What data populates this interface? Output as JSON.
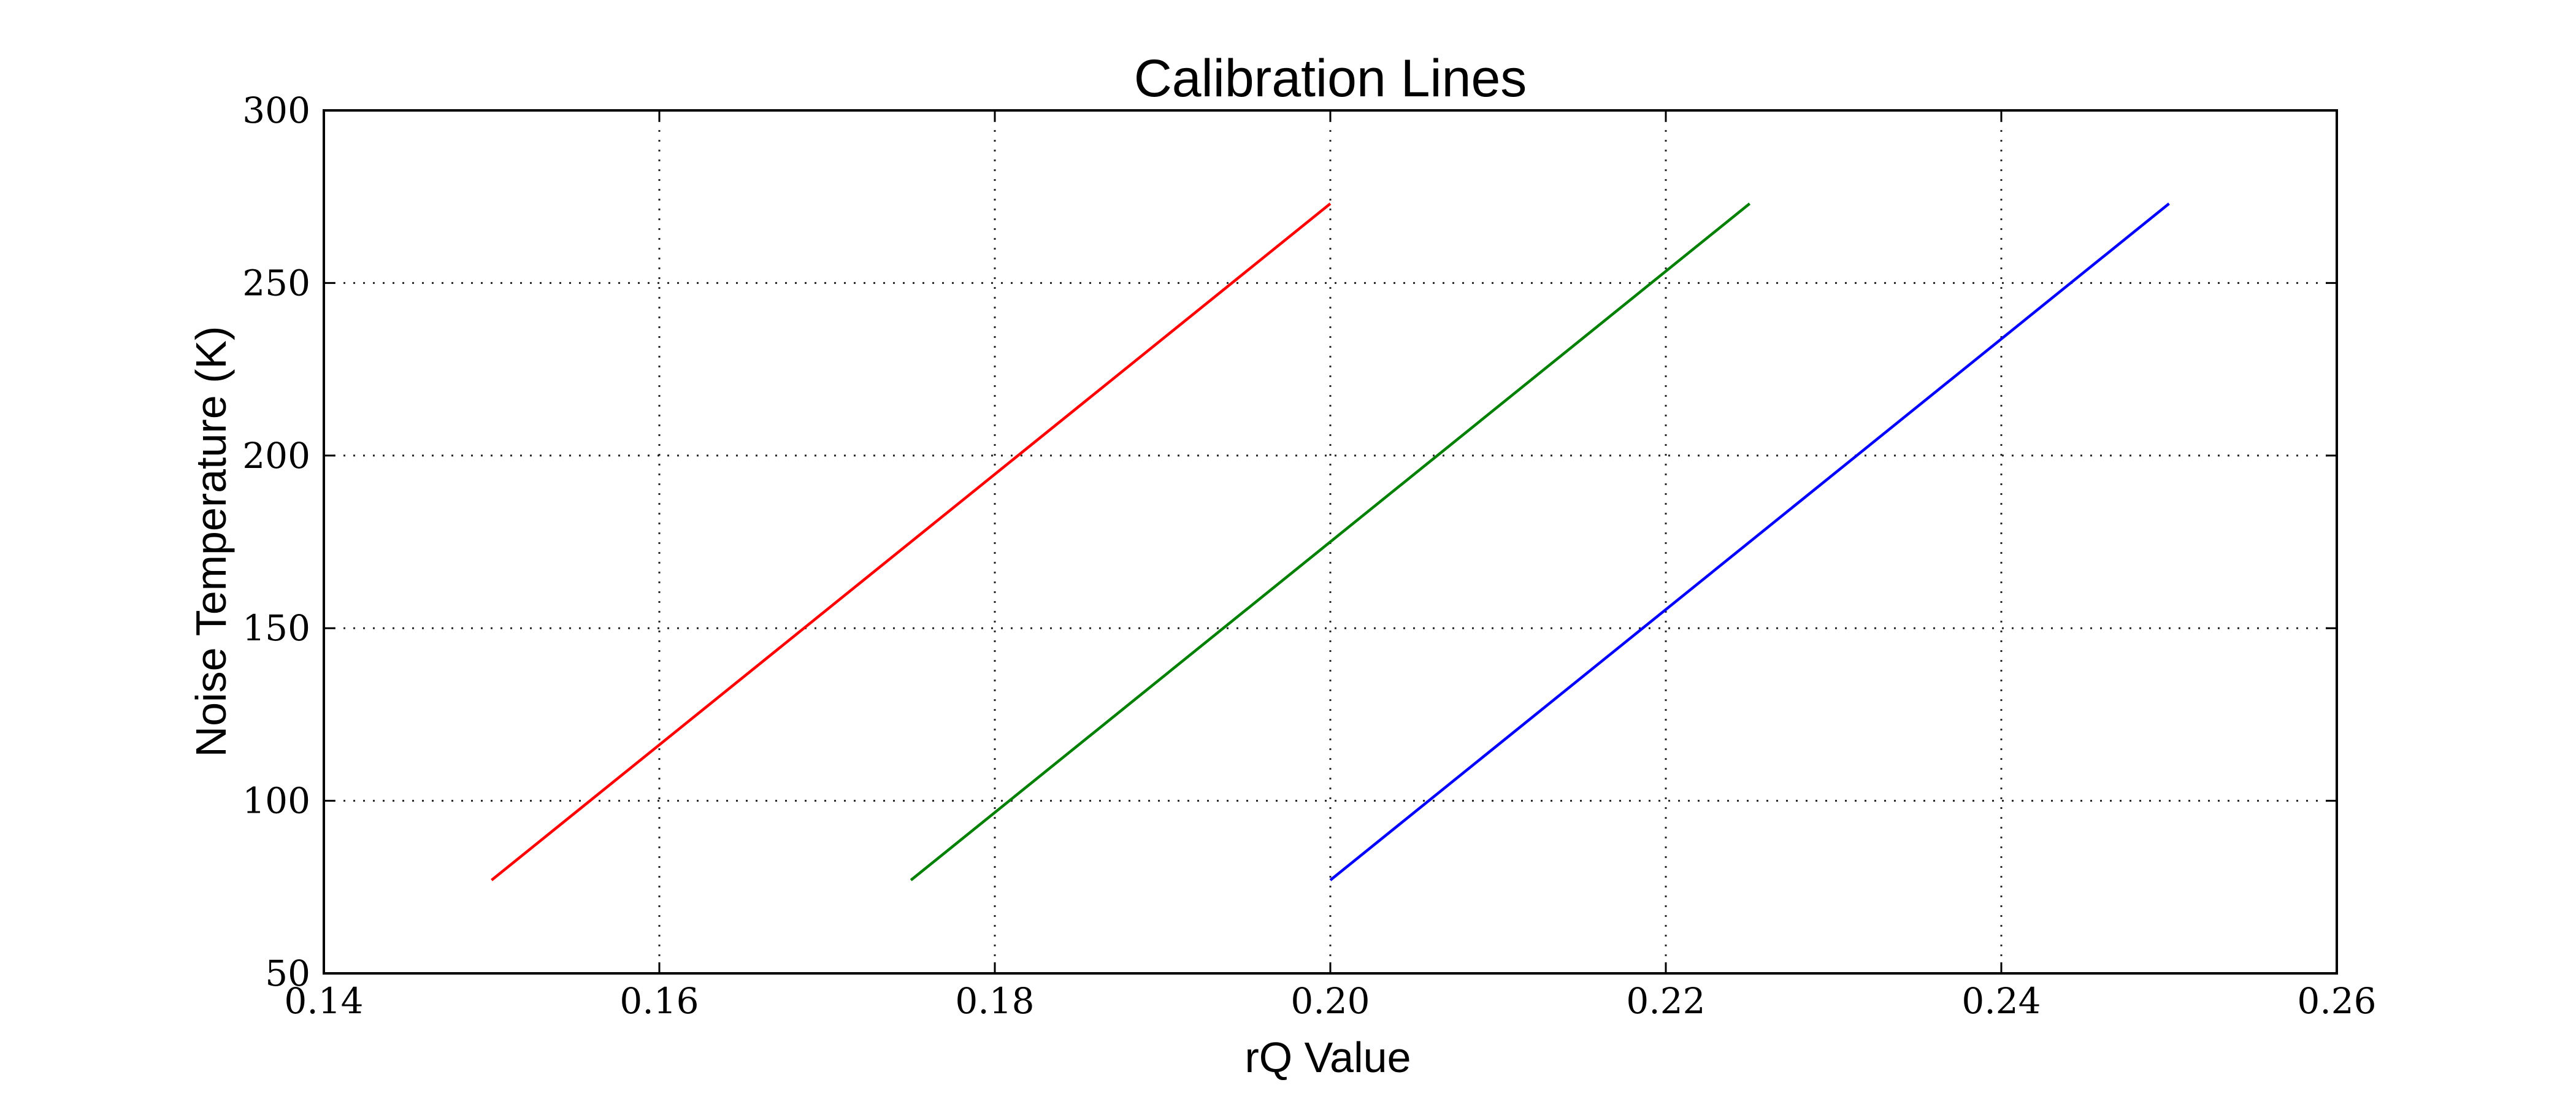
{
  "chart_data": {
    "type": "line",
    "title": "Calibration Lines",
    "xlabel": "rQ Value",
    "ylabel": "Noise Temperature (K)",
    "xlim": [
      0.14,
      0.26
    ],
    "ylim": [
      50,
      300
    ],
    "xticks": [
      "0.14",
      "0.16",
      "0.18",
      "0.20",
      "0.22",
      "0.24",
      "0.26"
    ],
    "yticks": [
      "50",
      "100",
      "150",
      "200",
      "250",
      "300"
    ],
    "grid": true,
    "series": [
      {
        "color": "#ff0000",
        "x": [
          0.15,
          0.2
        ],
        "y": [
          77,
          273
        ]
      },
      {
        "color": "#008000",
        "x": [
          0.175,
          0.225
        ],
        "y": [
          77,
          273
        ]
      },
      {
        "color": "#0000ff",
        "x": [
          0.2,
          0.25
        ],
        "y": [
          77,
          273
        ]
      }
    ]
  }
}
